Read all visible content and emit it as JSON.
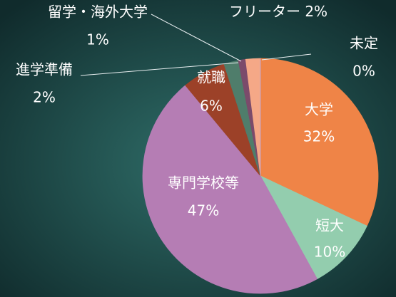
{
  "chart_data": {
    "type": "pie",
    "categories": [
      "大学",
      "短大",
      "専門学校等",
      "就職",
      "進学準備",
      "留学・海外大学",
      "フリーター",
      "未定"
    ],
    "values": [
      32,
      10,
      47,
      6,
      2,
      1,
      2,
      0
    ],
    "value_labels": [
      "32%",
      "10%",
      "47%",
      "6%",
      "2%",
      "1%",
      "2%",
      "0%"
    ],
    "colors": [
      "#ef8447",
      "#93cdae",
      "#b57db4",
      "#9c4128",
      "#4f7d6b",
      "#7b4b6b",
      "#f5a887",
      "#b9a2d4"
    ]
  }
}
